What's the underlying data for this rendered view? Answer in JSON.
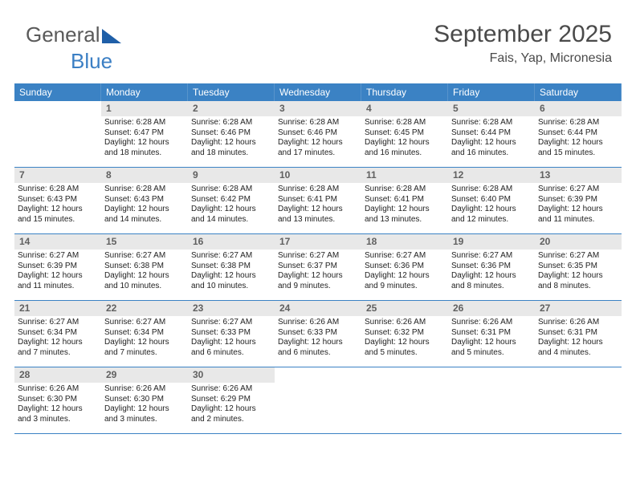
{
  "logo": {
    "text1": "General",
    "text2": "Blue",
    "triangle_color": "#1f5fa8"
  },
  "header": {
    "month_title": "September 2025",
    "location": "Fais, Yap, Micronesia"
  },
  "colors": {
    "header_bar": "#3b82c4",
    "daynum_bg": "#e8e8e8",
    "daynum_fg": "#606060",
    "border": "#3b82c4",
    "text": "#222222"
  },
  "weekdays": [
    "Sunday",
    "Monday",
    "Tuesday",
    "Wednesday",
    "Thursday",
    "Friday",
    "Saturday"
  ],
  "weeks": [
    [
      {
        "empty": true
      },
      {
        "day": "1",
        "sunrise": "Sunrise: 6:28 AM",
        "sunset": "Sunset: 6:47 PM",
        "daylight": "Daylight: 12 hours and 18 minutes."
      },
      {
        "day": "2",
        "sunrise": "Sunrise: 6:28 AM",
        "sunset": "Sunset: 6:46 PM",
        "daylight": "Daylight: 12 hours and 18 minutes."
      },
      {
        "day": "3",
        "sunrise": "Sunrise: 6:28 AM",
        "sunset": "Sunset: 6:46 PM",
        "daylight": "Daylight: 12 hours and 17 minutes."
      },
      {
        "day": "4",
        "sunrise": "Sunrise: 6:28 AM",
        "sunset": "Sunset: 6:45 PM",
        "daylight": "Daylight: 12 hours and 16 minutes."
      },
      {
        "day": "5",
        "sunrise": "Sunrise: 6:28 AM",
        "sunset": "Sunset: 6:44 PM",
        "daylight": "Daylight: 12 hours and 16 minutes."
      },
      {
        "day": "6",
        "sunrise": "Sunrise: 6:28 AM",
        "sunset": "Sunset: 6:44 PM",
        "daylight": "Daylight: 12 hours and 15 minutes."
      }
    ],
    [
      {
        "day": "7",
        "sunrise": "Sunrise: 6:28 AM",
        "sunset": "Sunset: 6:43 PM",
        "daylight": "Daylight: 12 hours and 15 minutes."
      },
      {
        "day": "8",
        "sunrise": "Sunrise: 6:28 AM",
        "sunset": "Sunset: 6:43 PM",
        "daylight": "Daylight: 12 hours and 14 minutes."
      },
      {
        "day": "9",
        "sunrise": "Sunrise: 6:28 AM",
        "sunset": "Sunset: 6:42 PM",
        "daylight": "Daylight: 12 hours and 14 minutes."
      },
      {
        "day": "10",
        "sunrise": "Sunrise: 6:28 AM",
        "sunset": "Sunset: 6:41 PM",
        "daylight": "Daylight: 12 hours and 13 minutes."
      },
      {
        "day": "11",
        "sunrise": "Sunrise: 6:28 AM",
        "sunset": "Sunset: 6:41 PM",
        "daylight": "Daylight: 12 hours and 13 minutes."
      },
      {
        "day": "12",
        "sunrise": "Sunrise: 6:28 AM",
        "sunset": "Sunset: 6:40 PM",
        "daylight": "Daylight: 12 hours and 12 minutes."
      },
      {
        "day": "13",
        "sunrise": "Sunrise: 6:27 AM",
        "sunset": "Sunset: 6:39 PM",
        "daylight": "Daylight: 12 hours and 11 minutes."
      }
    ],
    [
      {
        "day": "14",
        "sunrise": "Sunrise: 6:27 AM",
        "sunset": "Sunset: 6:39 PM",
        "daylight": "Daylight: 12 hours and 11 minutes."
      },
      {
        "day": "15",
        "sunrise": "Sunrise: 6:27 AM",
        "sunset": "Sunset: 6:38 PM",
        "daylight": "Daylight: 12 hours and 10 minutes."
      },
      {
        "day": "16",
        "sunrise": "Sunrise: 6:27 AM",
        "sunset": "Sunset: 6:38 PM",
        "daylight": "Daylight: 12 hours and 10 minutes."
      },
      {
        "day": "17",
        "sunrise": "Sunrise: 6:27 AM",
        "sunset": "Sunset: 6:37 PM",
        "daylight": "Daylight: 12 hours and 9 minutes."
      },
      {
        "day": "18",
        "sunrise": "Sunrise: 6:27 AM",
        "sunset": "Sunset: 6:36 PM",
        "daylight": "Daylight: 12 hours and 9 minutes."
      },
      {
        "day": "19",
        "sunrise": "Sunrise: 6:27 AM",
        "sunset": "Sunset: 6:36 PM",
        "daylight": "Daylight: 12 hours and 8 minutes."
      },
      {
        "day": "20",
        "sunrise": "Sunrise: 6:27 AM",
        "sunset": "Sunset: 6:35 PM",
        "daylight": "Daylight: 12 hours and 8 minutes."
      }
    ],
    [
      {
        "day": "21",
        "sunrise": "Sunrise: 6:27 AM",
        "sunset": "Sunset: 6:34 PM",
        "daylight": "Daylight: 12 hours and 7 minutes."
      },
      {
        "day": "22",
        "sunrise": "Sunrise: 6:27 AM",
        "sunset": "Sunset: 6:34 PM",
        "daylight": "Daylight: 12 hours and 7 minutes."
      },
      {
        "day": "23",
        "sunrise": "Sunrise: 6:27 AM",
        "sunset": "Sunset: 6:33 PM",
        "daylight": "Daylight: 12 hours and 6 minutes."
      },
      {
        "day": "24",
        "sunrise": "Sunrise: 6:26 AM",
        "sunset": "Sunset: 6:33 PM",
        "daylight": "Daylight: 12 hours and 6 minutes."
      },
      {
        "day": "25",
        "sunrise": "Sunrise: 6:26 AM",
        "sunset": "Sunset: 6:32 PM",
        "daylight": "Daylight: 12 hours and 5 minutes."
      },
      {
        "day": "26",
        "sunrise": "Sunrise: 6:26 AM",
        "sunset": "Sunset: 6:31 PM",
        "daylight": "Daylight: 12 hours and 5 minutes."
      },
      {
        "day": "27",
        "sunrise": "Sunrise: 6:26 AM",
        "sunset": "Sunset: 6:31 PM",
        "daylight": "Daylight: 12 hours and 4 minutes."
      }
    ],
    [
      {
        "day": "28",
        "sunrise": "Sunrise: 6:26 AM",
        "sunset": "Sunset: 6:30 PM",
        "daylight": "Daylight: 12 hours and 3 minutes."
      },
      {
        "day": "29",
        "sunrise": "Sunrise: 6:26 AM",
        "sunset": "Sunset: 6:30 PM",
        "daylight": "Daylight: 12 hours and 3 minutes."
      },
      {
        "day": "30",
        "sunrise": "Sunrise: 6:26 AM",
        "sunset": "Sunset: 6:29 PM",
        "daylight": "Daylight: 12 hours and 2 minutes."
      },
      {
        "empty": true
      },
      {
        "empty": true
      },
      {
        "empty": true
      },
      {
        "empty": true
      }
    ]
  ]
}
